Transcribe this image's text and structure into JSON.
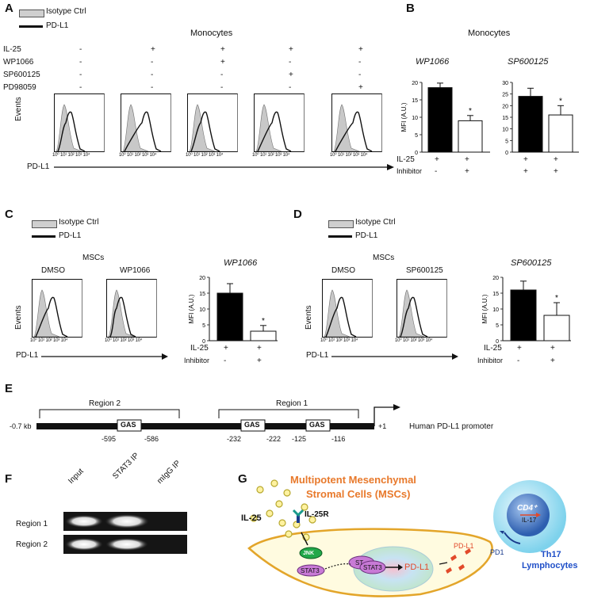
{
  "panels": {
    "A": "A",
    "B": "B",
    "C": "C",
    "D": "D",
    "E": "E",
    "F": "F",
    "G": "G"
  },
  "legend": {
    "isotype": "Isotype Ctrl",
    "pdl1": "PD-L1"
  },
  "panelA": {
    "title": "Monocytes",
    "rows": [
      {
        "label": "IL-25",
        "values": [
          "-",
          "+",
          "+",
          "+",
          "+"
        ]
      },
      {
        "label": "WP1066",
        "values": [
          "-",
          "-",
          "+",
          "-",
          "-"
        ]
      },
      {
        "label": "SP600125",
        "values": [
          "-",
          "-",
          "-",
          "+",
          "-"
        ]
      },
      {
        "label": "PD98059",
        "values": [
          "-",
          "-",
          "-",
          "-",
          "+"
        ]
      }
    ],
    "ylabel": "Events",
    "xlabel": "PD-L1",
    "ticks": "10⁰ 10¹ 10² 10³ 10⁴"
  },
  "panelB": {
    "title": "Monocytes",
    "row1_label": "IL-25",
    "row2_label": "Inhibitor",
    "ylabel": "MFI (A.U.)",
    "sig": "*"
  },
  "panelC": {
    "title": "MSCs",
    "cond1": "DMSO",
    "cond2": "WP1066",
    "ylabel": "Events",
    "xlabel": "PD-L1"
  },
  "panelD": {
    "title": "MSCs",
    "cond1": "DMSO",
    "cond2": "SP600125",
    "ylabel": "Events",
    "xlabel": "PD-L1"
  },
  "chart_data": [
    {
      "type": "bar",
      "title": "WP1066",
      "categories": [
        "IL-25 +, Inhibitor -",
        "IL-25 +, Inhibitor +"
      ],
      "values": [
        18.5,
        9
      ],
      "errors": [
        1.3,
        1.5
      ],
      "ylabel": "MFI (A.U.)",
      "ylim": [
        0,
        20
      ],
      "yticks": [
        0,
        5,
        10,
        15,
        20
      ],
      "colors": [
        "#000000",
        "#ffffff"
      ]
    },
    {
      "type": "bar",
      "title": "SP600125",
      "categories": [
        "IL-25 +, Inhibitor -",
        "IL-25 +, Inhibitor +"
      ],
      "values": [
        24,
        16
      ],
      "errors": [
        3.5,
        4
      ],
      "ylabel": "MFI (A.U.)",
      "ylim": [
        0,
        30
      ],
      "yticks": [
        0,
        5,
        10,
        15,
        20,
        25,
        30
      ],
      "colors": [
        "#000000",
        "#ffffff"
      ]
    },
    {
      "type": "bar",
      "title": "WP1066",
      "categories": [
        "IL-25 +, Inhibitor -",
        "IL-25 +, Inhibitor +"
      ],
      "values": [
        15,
        3
      ],
      "errors": [
        3,
        1.8
      ],
      "ylabel": "MFI (A.U.)",
      "ylim": [
        0,
        20
      ],
      "yticks": [
        0,
        5,
        10,
        15,
        20
      ],
      "colors": [
        "#000000",
        "#ffffff"
      ]
    },
    {
      "type": "bar",
      "title": "SP600125",
      "categories": [
        "IL-25 +, Inhibitor -",
        "IL-25 +, Inhibitor +"
      ],
      "values": [
        16,
        8
      ],
      "errors": [
        2.8,
        4
      ],
      "ylabel": "MFI (A.U.)",
      "ylim": [
        0,
        20
      ],
      "yticks": [
        0,
        5,
        10,
        15,
        20
      ],
      "colors": [
        "#000000",
        "#ffffff"
      ]
    }
  ],
  "panelE": {
    "region1": "Region 1",
    "region2": "Region 2",
    "start": "-0.7 kb",
    "end": "+1",
    "gas": "GAS",
    "pos": [
      "-595",
      "-586",
      "-232",
      "-222",
      "-125",
      "-116"
    ],
    "label": "Human PD-L1 promoter"
  },
  "panelF": {
    "lanes": [
      "Input",
      "STAT3 IP",
      "mIgG IP"
    ],
    "rows": [
      "Region 1",
      "Region 2"
    ]
  },
  "panelG": {
    "title_line1": "Multipotent Mesenchymal",
    "title_line2": "Stromal Cells (MSCs)",
    "il25": "IL-25",
    "il25r": "IL-25R",
    "jnk": "JNK",
    "stat3": "STAT3",
    "stat3_short": "ST",
    "pdl1": "PD-L1",
    "pdl1_small": "PD-L1",
    "pd1": "PD1",
    "cd4": "CD4⁺",
    "il17": "IL-17",
    "th17_line1": "Th17",
    "th17_line2": "Lymphocytes",
    "colors": {
      "title": "#e8792b",
      "cell_fill": "#fffbe0",
      "cell_border": "#e3a52a",
      "jnk": "#22a84a",
      "stat3": "#c87ad6",
      "th17": "#1f4fc8"
    }
  }
}
